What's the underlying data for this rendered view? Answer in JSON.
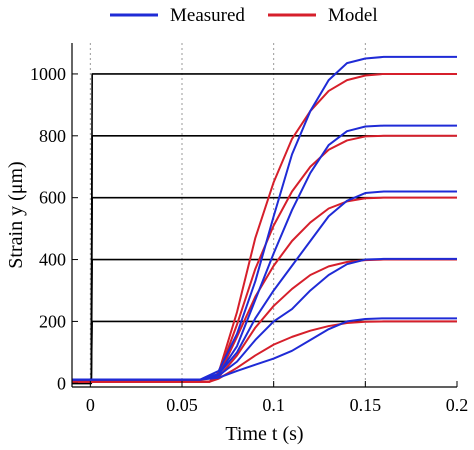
{
  "chart_data": {
    "type": "line",
    "xlabel": "Time t (s)",
    "ylabel": "Strain y (μm)",
    "xlim": [
      -0.01,
      0.2
    ],
    "ylim": [
      -12,
      1100
    ],
    "x_ticks": [
      0,
      0.05,
      0.1,
      0.15,
      0.2
    ],
    "x_tick_labels": [
      "0",
      "0.05",
      "0.1",
      "0.15",
      "0.2"
    ],
    "y_ticks": [
      0,
      200,
      400,
      600,
      800,
      1000
    ],
    "y_tick_labels": [
      "0",
      "200",
      "400",
      "600",
      "800",
      "1000"
    ],
    "x_grid": "dotted vertical at 0, 0.05, 0.1, 0.15",
    "legend_position": "top, above plot",
    "legend": [
      {
        "label": "Measured",
        "color": "#1f2bd6"
      },
      {
        "label": "Model",
        "color": "#d61f2b"
      }
    ],
    "reference_color": "#000000",
    "series": [
      {
        "group": "reference",
        "points": [
          [
            -0.01,
            0
          ],
          [
            0.0005,
            0
          ],
          [
            0.001,
            200
          ],
          [
            0.2,
            200
          ]
        ]
      },
      {
        "group": "reference",
        "points": [
          [
            -0.01,
            0
          ],
          [
            0.0005,
            0
          ],
          [
            0.001,
            400
          ],
          [
            0.2,
            400
          ]
        ]
      },
      {
        "group": "reference",
        "points": [
          [
            -0.01,
            0
          ],
          [
            0.0005,
            0
          ],
          [
            0.001,
            600
          ],
          [
            0.2,
            600
          ]
        ]
      },
      {
        "group": "reference",
        "points": [
          [
            -0.01,
            0
          ],
          [
            0.0005,
            0
          ],
          [
            0.001,
            800
          ],
          [
            0.2,
            800
          ]
        ]
      },
      {
        "group": "reference",
        "points": [
          [
            -0.01,
            0
          ],
          [
            0.0005,
            0
          ],
          [
            0.001,
            1000
          ],
          [
            0.2,
            1000
          ]
        ]
      },
      {
        "group": "Measured",
        "points": [
          [
            -0.01,
            12
          ],
          [
            0.06,
            12
          ],
          [
            0.07,
            25
          ],
          [
            0.08,
            70
          ],
          [
            0.09,
            140
          ],
          [
            0.1,
            200
          ],
          [
            0.11,
            240
          ],
          [
            0.12,
            300
          ],
          [
            0.13,
            350
          ],
          [
            0.14,
            385
          ],
          [
            0.15,
            400
          ],
          [
            0.16,
            402
          ],
          [
            0.2,
            402
          ]
        ]
      },
      {
        "group": "Measured",
        "points": [
          [
            -0.01,
            12
          ],
          [
            0.06,
            12
          ],
          [
            0.07,
            30
          ],
          [
            0.08,
            100
          ],
          [
            0.09,
            210
          ],
          [
            0.1,
            300
          ],
          [
            0.11,
            380
          ],
          [
            0.12,
            460
          ],
          [
            0.13,
            540
          ],
          [
            0.14,
            590
          ],
          [
            0.15,
            615
          ],
          [
            0.16,
            620
          ],
          [
            0.2,
            620
          ]
        ]
      },
      {
        "group": "Measured",
        "points": [
          [
            -0.01,
            12
          ],
          [
            0.06,
            12
          ],
          [
            0.07,
            30
          ],
          [
            0.08,
            120
          ],
          [
            0.09,
            270
          ],
          [
            0.1,
            420
          ],
          [
            0.11,
            560
          ],
          [
            0.12,
            680
          ],
          [
            0.13,
            770
          ],
          [
            0.14,
            815
          ],
          [
            0.15,
            830
          ],
          [
            0.16,
            833
          ],
          [
            0.2,
            833
          ]
        ]
      },
      {
        "group": "Measured",
        "points": [
          [
            -0.01,
            12
          ],
          [
            0.06,
            12
          ],
          [
            0.07,
            40
          ],
          [
            0.08,
            160
          ],
          [
            0.09,
            330
          ],
          [
            0.1,
            540
          ],
          [
            0.11,
            740
          ],
          [
            0.12,
            880
          ],
          [
            0.13,
            980
          ],
          [
            0.14,
            1035
          ],
          [
            0.15,
            1050
          ],
          [
            0.16,
            1055
          ],
          [
            0.2,
            1055
          ]
        ]
      },
      {
        "group": "Measured",
        "points": [
          [
            -0.01,
            12
          ],
          [
            0.06,
            12
          ],
          [
            0.07,
            18
          ],
          [
            0.08,
            40
          ],
          [
            0.09,
            60
          ],
          [
            0.1,
            80
          ],
          [
            0.11,
            105
          ],
          [
            0.12,
            140
          ],
          [
            0.13,
            175
          ],
          [
            0.14,
            200
          ],
          [
            0.15,
            208
          ],
          [
            0.16,
            210
          ],
          [
            0.2,
            210
          ]
        ]
      },
      {
        "group": "Model",
        "points": [
          [
            -0.01,
            5
          ],
          [
            0.065,
            5
          ],
          [
            0.07,
            15
          ],
          [
            0.08,
            50
          ],
          [
            0.09,
            90
          ],
          [
            0.1,
            125
          ],
          [
            0.11,
            150
          ],
          [
            0.12,
            170
          ],
          [
            0.13,
            185
          ],
          [
            0.14,
            195
          ],
          [
            0.15,
            199
          ],
          [
            0.16,
            200
          ],
          [
            0.2,
            200
          ]
        ]
      },
      {
        "group": "Model",
        "points": [
          [
            -0.01,
            5
          ],
          [
            0.065,
            5
          ],
          [
            0.07,
            20
          ],
          [
            0.08,
            90
          ],
          [
            0.09,
            180
          ],
          [
            0.1,
            250
          ],
          [
            0.11,
            305
          ],
          [
            0.12,
            350
          ],
          [
            0.13,
            378
          ],
          [
            0.14,
            392
          ],
          [
            0.15,
            398
          ],
          [
            0.16,
            400
          ],
          [
            0.2,
            400
          ]
        ]
      },
      {
        "group": "Model",
        "points": [
          [
            -0.01,
            5
          ],
          [
            0.065,
            5
          ],
          [
            0.07,
            25
          ],
          [
            0.08,
            150
          ],
          [
            0.09,
            280
          ],
          [
            0.1,
            380
          ],
          [
            0.11,
            460
          ],
          [
            0.12,
            520
          ],
          [
            0.13,
            565
          ],
          [
            0.14,
            588
          ],
          [
            0.15,
            598
          ],
          [
            0.16,
            600
          ],
          [
            0.2,
            600
          ]
        ]
      },
      {
        "group": "Model",
        "points": [
          [
            -0.01,
            5
          ],
          [
            0.065,
            5
          ],
          [
            0.07,
            30
          ],
          [
            0.08,
            190
          ],
          [
            0.09,
            370
          ],
          [
            0.1,
            510
          ],
          [
            0.11,
            620
          ],
          [
            0.12,
            700
          ],
          [
            0.13,
            755
          ],
          [
            0.14,
            785
          ],
          [
            0.15,
            798
          ],
          [
            0.16,
            800
          ],
          [
            0.2,
            800
          ]
        ]
      },
      {
        "group": "Model",
        "points": [
          [
            -0.01,
            5
          ],
          [
            0.065,
            5
          ],
          [
            0.07,
            35
          ],
          [
            0.08,
            230
          ],
          [
            0.09,
            470
          ],
          [
            0.1,
            650
          ],
          [
            0.11,
            790
          ],
          [
            0.12,
            880
          ],
          [
            0.13,
            945
          ],
          [
            0.14,
            980
          ],
          [
            0.15,
            995
          ],
          [
            0.16,
            1000
          ],
          [
            0.2,
            1000
          ]
        ]
      }
    ]
  }
}
